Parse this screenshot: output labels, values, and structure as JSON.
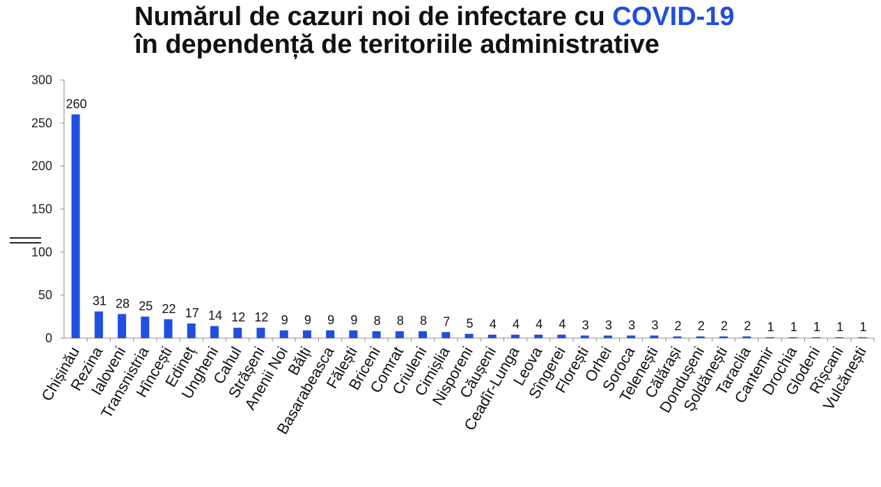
{
  "title": {
    "line1_prefix": "Numărul de cazuri noi de infectare cu ",
    "line1_accent": "COVID-19",
    "line2": "în dependență de teritoriile administrative"
  },
  "colors": {
    "bar": "#1f4fe0",
    "accent": "#1f4fe0",
    "axis": "#888888"
  },
  "chart_data": {
    "type": "bar",
    "title": "Numărul de cazuri noi de infectare cu COVID-19 în dependență de teritoriile administrative",
    "xlabel": "",
    "ylabel": "",
    "ylim": [
      0,
      300
    ],
    "yticks": [
      0,
      50,
      100,
      150,
      200,
      250,
      300
    ],
    "grid": false,
    "categories": [
      "Chișinău",
      "Rezina",
      "Ialoveni",
      "Transnistria",
      "Hîncești",
      "Edineț",
      "Ungheni",
      "Cahul",
      "Strășeni",
      "Anenii Noi",
      "Bălți",
      "Basarabeasca",
      "Fălești",
      "Briceni",
      "Comrat",
      "Criuleni",
      "Cimișlia",
      "Nisporeni",
      "Căușeni",
      "Ceadîr-Lunga",
      "Leova",
      "Sîngerei",
      "Florești",
      "Orhei",
      "Soroca",
      "Telenești",
      "Călărași",
      "Dondușeni",
      "Șoldănești",
      "Taraclia",
      "Cantemir",
      "Drochia",
      "Glodeni",
      "Rîșcani",
      "Vulcănești"
    ],
    "values": [
      260,
      31,
      28,
      25,
      22,
      17,
      14,
      12,
      12,
      9,
      9,
      9,
      9,
      8,
      8,
      8,
      7,
      5,
      4,
      4,
      4,
      4,
      3,
      3,
      3,
      3,
      2,
      2,
      2,
      2,
      1,
      1,
      1,
      1,
      1
    ]
  }
}
